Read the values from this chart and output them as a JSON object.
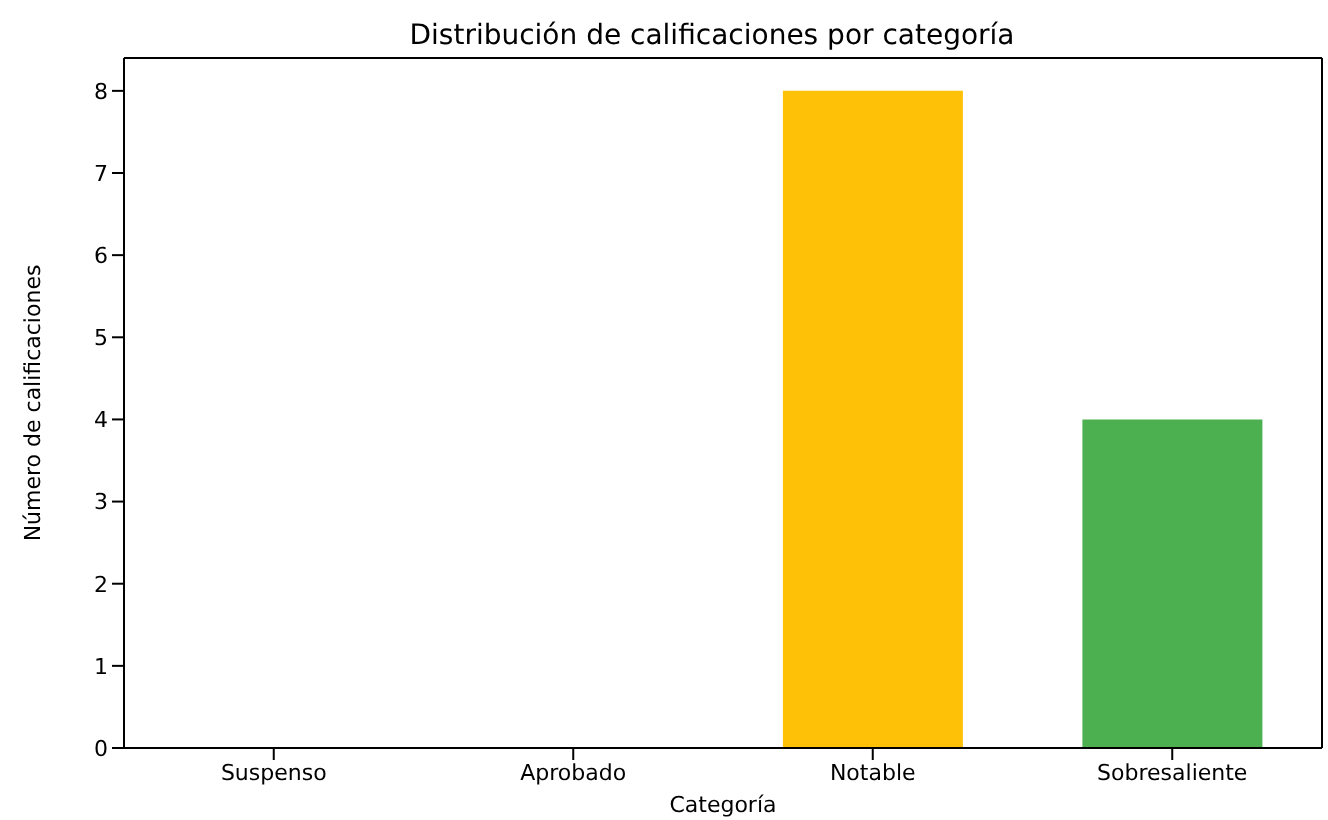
{
  "chart_data": {
    "type": "bar",
    "title": "Distribución de calificaciones por categoría",
    "xlabel": "Categoría",
    "ylabel": "Número de calificaciones",
    "categories": [
      "Suspenso",
      "Aprobado",
      "Notable",
      "Sobresaliente"
    ],
    "values": [
      0,
      0,
      8,
      4
    ],
    "colors": [
      "#f44336",
      "#ff9800",
      "#ffc107",
      "#4caf50"
    ],
    "ylim": [
      0,
      8.4
    ],
    "yticks": [
      0,
      1,
      2,
      3,
      4,
      5,
      6,
      7,
      8
    ],
    "grid": false
  }
}
